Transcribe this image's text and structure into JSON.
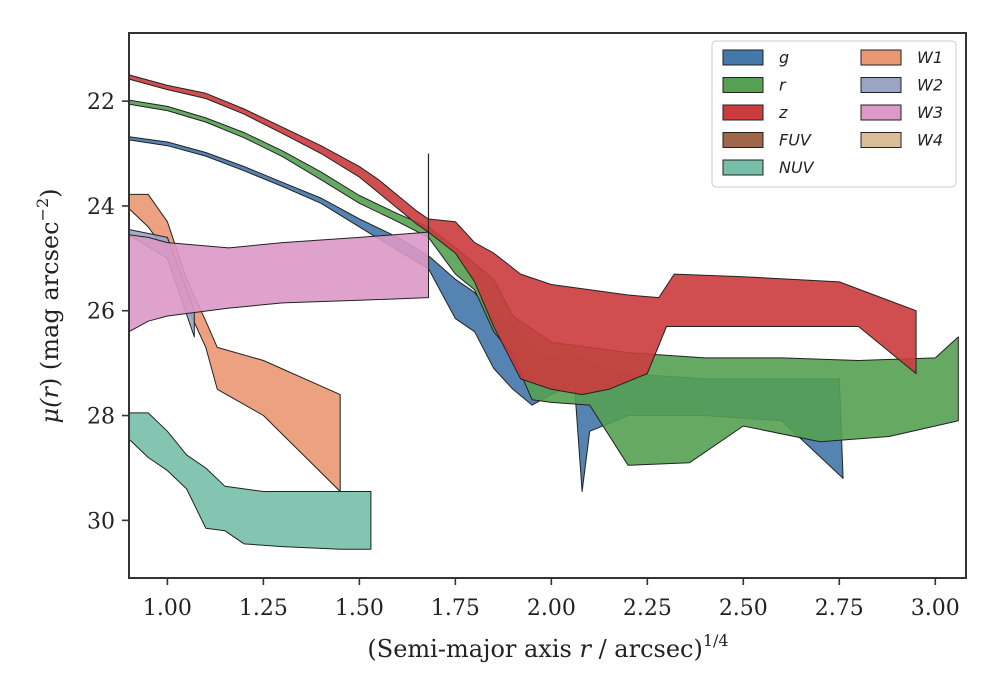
{
  "chart_data": {
    "type": "area",
    "xlabel_main": "(Semi-major axis ",
    "xlabel_var": "r",
    "xlabel_tail": " / arcsec)",
    "xlabel_sup": "1/4",
    "ylabel_main": "μ(",
    "ylabel_var": "r",
    "ylabel_tail": ") (mag arcsec",
    "ylabel_sup": "−2",
    "ylabel_close": ")",
    "xlim": [
      0.9,
      3.08
    ],
    "ylim": [
      31.1,
      20.7
    ],
    "y_inverted": true,
    "x_ticks": [
      1.0,
      1.25,
      1.5,
      1.75,
      2.0,
      2.25,
      2.5,
      2.75,
      3.0
    ],
    "x_tick_labels": [
      "1.00",
      "1.25",
      "1.50",
      "1.75",
      "2.00",
      "2.25",
      "2.50",
      "2.75",
      "3.00"
    ],
    "y_ticks": [
      22,
      24,
      26,
      28,
      30
    ],
    "y_tick_labels": [
      "22",
      "24",
      "26",
      "28",
      "30"
    ],
    "legend_position": "top-right",
    "legend_columns": 2,
    "series": [
      {
        "name": "g",
        "color": "#4477aa",
        "upper": [
          [
            0.9,
            22.68
          ],
          [
            1.0,
            22.78
          ],
          [
            1.1,
            22.98
          ],
          [
            1.2,
            23.25
          ],
          [
            1.3,
            23.55
          ],
          [
            1.4,
            23.85
          ],
          [
            1.5,
            24.25
          ],
          [
            1.6,
            24.6
          ],
          [
            1.68,
            24.95
          ],
          [
            1.75,
            25.4
          ],
          [
            1.8,
            25.65
          ],
          [
            1.85,
            26.1
          ],
          [
            1.9,
            26.25
          ],
          [
            1.95,
            26.7
          ],
          [
            2.0,
            26.9
          ],
          [
            2.05,
            26.8
          ],
          [
            2.1,
            27.0
          ],
          [
            2.2,
            27.2
          ],
          [
            2.4,
            27.3
          ],
          [
            2.6,
            27.3
          ],
          [
            2.75,
            27.3
          ]
        ],
        "lower": [
          [
            0.9,
            22.74
          ],
          [
            1.0,
            22.85
          ],
          [
            1.1,
            23.05
          ],
          [
            1.2,
            23.33
          ],
          [
            1.3,
            23.63
          ],
          [
            1.4,
            23.95
          ],
          [
            1.5,
            24.4
          ],
          [
            1.6,
            24.85
          ],
          [
            1.68,
            25.2
          ],
          [
            1.75,
            26.15
          ],
          [
            1.8,
            26.4
          ],
          [
            1.85,
            27.1
          ],
          [
            1.9,
            27.5
          ],
          [
            1.95,
            27.8
          ],
          [
            2.0,
            27.6
          ],
          [
            2.06,
            27.4
          ],
          [
            2.08,
            29.45
          ],
          [
            2.1,
            28.3
          ],
          [
            2.2,
            28.0
          ],
          [
            2.4,
            28.0
          ],
          [
            2.6,
            28.1
          ],
          [
            2.76,
            29.2
          ]
        ]
      },
      {
        "name": "r",
        "color": "#55a052",
        "upper": [
          [
            0.9,
            21.98
          ],
          [
            1.0,
            22.1
          ],
          [
            1.1,
            22.32
          ],
          [
            1.2,
            22.6
          ],
          [
            1.3,
            22.95
          ],
          [
            1.4,
            23.35
          ],
          [
            1.5,
            23.8
          ],
          [
            1.6,
            24.15
          ],
          [
            1.68,
            24.4
          ],
          [
            1.75,
            24.8
          ],
          [
            1.8,
            25.1
          ],
          [
            1.85,
            25.4
          ],
          [
            1.9,
            26.1
          ],
          [
            2.0,
            26.6
          ],
          [
            2.1,
            26.7
          ],
          [
            2.2,
            26.8
          ],
          [
            2.4,
            26.9
          ],
          [
            2.6,
            26.9
          ],
          [
            2.8,
            26.95
          ],
          [
            3.0,
            26.9
          ],
          [
            3.06,
            26.5
          ]
        ],
        "lower": [
          [
            0.9,
            22.06
          ],
          [
            1.0,
            22.18
          ],
          [
            1.1,
            22.4
          ],
          [
            1.2,
            22.7
          ],
          [
            1.3,
            23.06
          ],
          [
            1.4,
            23.5
          ],
          [
            1.5,
            23.95
          ],
          [
            1.6,
            24.3
          ],
          [
            1.68,
            24.6
          ],
          [
            1.75,
            25.3
          ],
          [
            1.8,
            25.6
          ],
          [
            1.85,
            26.4
          ],
          [
            1.9,
            26.85
          ],
          [
            1.95,
            27.7
          ],
          [
            2.0,
            27.75
          ],
          [
            2.1,
            27.8
          ],
          [
            2.2,
            28.95
          ],
          [
            2.36,
            28.9
          ],
          [
            2.5,
            28.2
          ],
          [
            2.7,
            28.5
          ],
          [
            2.88,
            28.4
          ],
          [
            3.06,
            28.1
          ]
        ]
      },
      {
        "name": "z",
        "color": "#cc3b3d",
        "upper": [
          [
            0.9,
            21.5
          ],
          [
            1.0,
            21.7
          ],
          [
            1.1,
            21.85
          ],
          [
            1.2,
            22.15
          ],
          [
            1.3,
            22.5
          ],
          [
            1.4,
            22.85
          ],
          [
            1.5,
            23.25
          ],
          [
            1.55,
            23.5
          ],
          [
            1.6,
            23.8
          ],
          [
            1.65,
            24.1
          ],
          [
            1.68,
            24.25
          ],
          [
            1.75,
            24.3
          ],
          [
            1.8,
            24.7
          ],
          [
            1.85,
            24.9
          ],
          [
            1.92,
            25.3
          ],
          [
            2.0,
            25.5
          ],
          [
            2.1,
            25.6
          ],
          [
            2.2,
            25.7
          ],
          [
            2.28,
            25.75
          ],
          [
            2.32,
            25.3
          ],
          [
            2.5,
            25.35
          ],
          [
            2.75,
            25.45
          ],
          [
            2.95,
            26.0
          ]
        ],
        "lower": [
          [
            0.9,
            21.58
          ],
          [
            1.0,
            21.78
          ],
          [
            1.1,
            21.95
          ],
          [
            1.2,
            22.25
          ],
          [
            1.3,
            22.62
          ],
          [
            1.4,
            23.0
          ],
          [
            1.5,
            23.45
          ],
          [
            1.55,
            23.75
          ],
          [
            1.6,
            24.05
          ],
          [
            1.65,
            24.35
          ],
          [
            1.68,
            24.5
          ],
          [
            1.75,
            24.9
          ],
          [
            1.8,
            25.45
          ],
          [
            1.85,
            26.3
          ],
          [
            1.92,
            27.3
          ],
          [
            2.0,
            27.5
          ],
          [
            2.08,
            27.6
          ],
          [
            2.15,
            27.5
          ],
          [
            2.25,
            27.2
          ],
          [
            2.3,
            26.3
          ],
          [
            2.5,
            26.3
          ],
          [
            2.8,
            26.3
          ],
          [
            2.95,
            27.2
          ]
        ]
      },
      {
        "name": "FUV",
        "color": "#a0664a",
        "upper": [],
        "lower": []
      },
      {
        "name": "NUV",
        "color": "#77bfa8",
        "upper": [
          [
            0.9,
            27.95
          ],
          [
            0.95,
            27.95
          ],
          [
            1.0,
            28.3
          ],
          [
            1.05,
            28.75
          ],
          [
            1.1,
            29.0
          ],
          [
            1.15,
            29.35
          ],
          [
            1.25,
            29.45
          ],
          [
            1.4,
            29.45
          ],
          [
            1.53,
            29.45
          ]
        ],
        "lower": [
          [
            0.9,
            28.45
          ],
          [
            0.95,
            28.8
          ],
          [
            1.0,
            29.05
          ],
          [
            1.05,
            29.4
          ],
          [
            1.1,
            30.15
          ],
          [
            1.15,
            30.2
          ],
          [
            1.2,
            30.45
          ],
          [
            1.3,
            30.5
          ],
          [
            1.45,
            30.55
          ],
          [
            1.53,
            30.55
          ]
        ]
      },
      {
        "name": "W1",
        "color": "#ea9773",
        "upper": [
          [
            0.9,
            23.78
          ],
          [
            0.95,
            23.78
          ],
          [
            1.0,
            24.3
          ],
          [
            1.05,
            25.4
          ],
          [
            1.1,
            26.2
          ],
          [
            1.13,
            26.7
          ],
          [
            1.25,
            26.95
          ],
          [
            1.45,
            27.6
          ]
        ],
        "lower": [
          [
            0.9,
            24.05
          ],
          [
            0.95,
            24.4
          ],
          [
            1.0,
            24.9
          ],
          [
            1.05,
            25.9
          ],
          [
            1.1,
            26.7
          ],
          [
            1.13,
            27.5
          ],
          [
            1.25,
            28.0
          ],
          [
            1.45,
            29.45
          ]
        ]
      },
      {
        "name": "W2",
        "color": "#9aa5c4",
        "upper": [
          [
            0.9,
            24.45
          ],
          [
            1.0,
            24.6
          ],
          [
            1.07,
            26.0
          ]
        ],
        "lower": [
          [
            0.9,
            24.55
          ],
          [
            1.0,
            25.0
          ],
          [
            1.07,
            26.5
          ]
        ]
      },
      {
        "name": "W3",
        "color": "#dc98c6",
        "upper": [
          [
            0.9,
            24.55
          ],
          [
            0.95,
            24.6
          ],
          [
            1.0,
            24.7
          ],
          [
            1.16,
            24.8
          ],
          [
            1.3,
            24.7
          ],
          [
            1.5,
            24.6
          ],
          [
            1.68,
            24.5
          ]
        ],
        "lower": [
          [
            0.9,
            26.4
          ],
          [
            0.95,
            26.2
          ],
          [
            1.0,
            26.1
          ],
          [
            1.16,
            25.95
          ],
          [
            1.3,
            25.85
          ],
          [
            1.5,
            25.8
          ],
          [
            1.68,
            25.75
          ]
        ]
      },
      {
        "name": "W4",
        "color": "#dcbd9a",
        "upper": [],
        "lower": []
      }
    ],
    "annotations": [
      {
        "type": "vline",
        "x": 1.68,
        "y_from": 23.0,
        "y_to": 24.6
      }
    ]
  }
}
